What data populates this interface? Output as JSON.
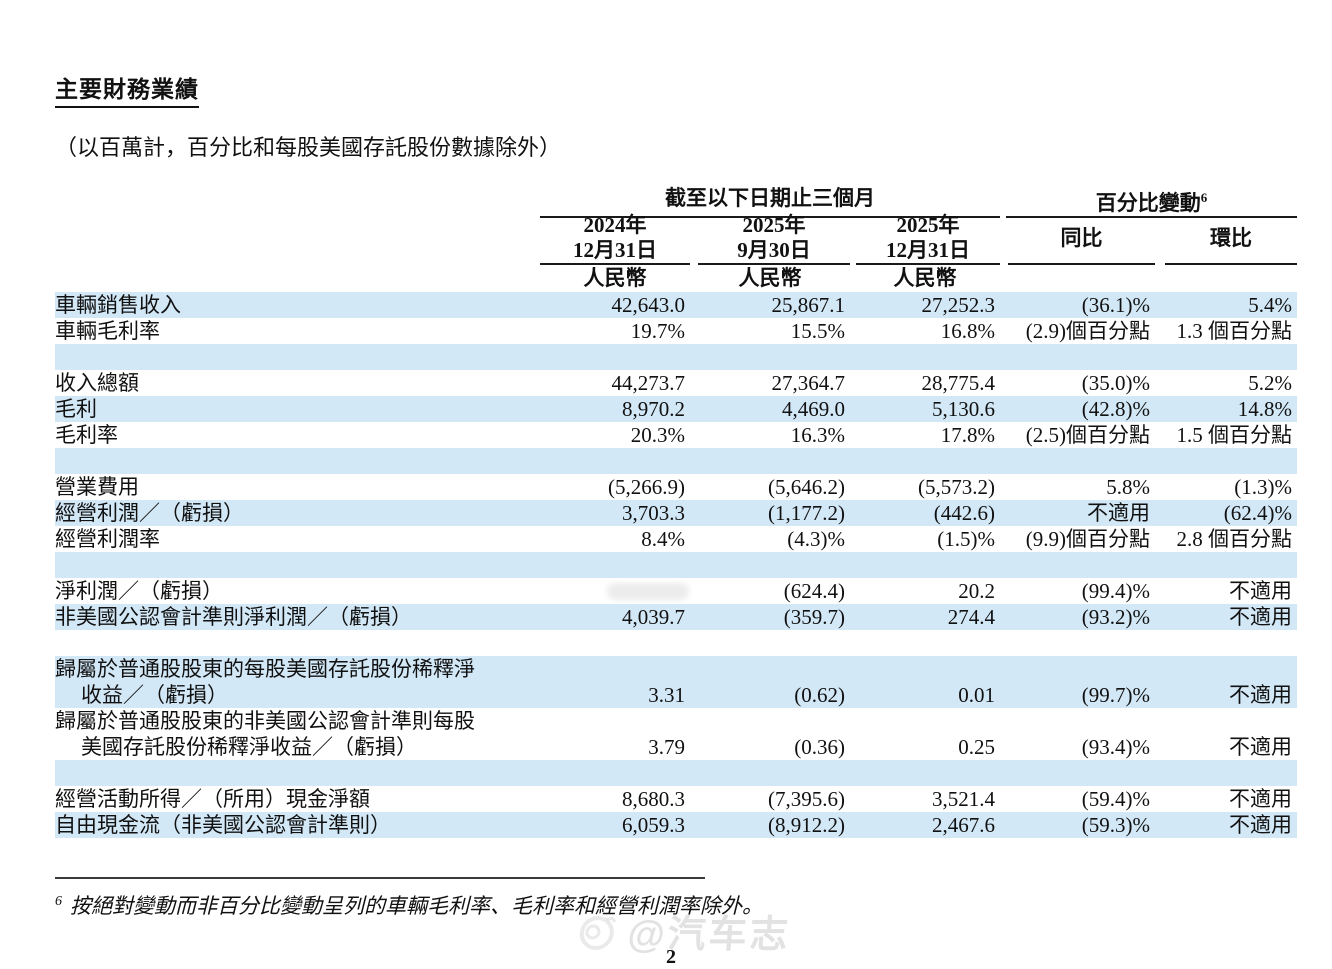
{
  "document": {
    "title": "主要財務業績",
    "unit_note": "（以百萬計，百分比和每股美國存託股份數據除外）",
    "footnote": {
      "marker": "6",
      "text": "按絕對變動而非百分比變動呈列的車輛毛利率、毛利率和經營利潤率除外。"
    },
    "watermark_text": "@汽车志",
    "page_number": "2"
  },
  "colors": {
    "row_stripe_blue": "#d3e8f7",
    "text": "#111111",
    "rule": "#1a1a1a"
  },
  "table": {
    "group_headers": {
      "period_label": "截至以下日期止三個月",
      "change_label": "百分比變動",
      "change_superscript": "6"
    },
    "column_headers": [
      {
        "year": "2024年",
        "date": "12月31日",
        "currency": "人民幣"
      },
      {
        "year": "2025年",
        "date": "9月30日",
        "currency": "人民幣"
      },
      {
        "year": "2025年",
        "date": "12月31日",
        "currency": "人民幣"
      },
      {
        "label": "同比"
      },
      {
        "label": "環比"
      }
    ],
    "rows": [
      {
        "type": "data",
        "stripe": "blue",
        "label": [
          "車輛銷售收入"
        ],
        "values": [
          "42,643.0",
          "25,867.1",
          "27,252.3",
          "(36.1)%",
          "5.4%"
        ]
      },
      {
        "type": "data",
        "stripe": "white",
        "label": [
          "車輛毛利率"
        ],
        "values": [
          "19.7%",
          "15.5%",
          "16.8%",
          "(2.9)個百分點",
          "1.3 個百分點"
        ]
      },
      {
        "type": "gap",
        "stripe": "blue"
      },
      {
        "type": "data",
        "stripe": "white",
        "label": [
          "收入總額"
        ],
        "values": [
          "44,273.7",
          "27,364.7",
          "28,775.4",
          "(35.0)%",
          "5.2%"
        ]
      },
      {
        "type": "data",
        "stripe": "blue",
        "label": [
          "毛利"
        ],
        "values": [
          "8,970.2",
          "4,469.0",
          "5,130.6",
          "(42.8)%",
          "14.8%"
        ]
      },
      {
        "type": "data",
        "stripe": "white",
        "label": [
          "毛利率"
        ],
        "values": [
          "20.3%",
          "16.3%",
          "17.8%",
          "(2.5)個百分點",
          "1.5 個百分點"
        ]
      },
      {
        "type": "gap",
        "stripe": "blue"
      },
      {
        "type": "data",
        "stripe": "white",
        "label": [
          "營業費用"
        ],
        "values": [
          "(5,266.9)",
          "(5,646.2)",
          "(5,573.2)",
          "5.8%",
          "(1.3)%"
        ]
      },
      {
        "type": "data",
        "stripe": "blue",
        "label": [
          "經營利潤／（虧損）"
        ],
        "values": [
          "3,703.3",
          "(1,177.2)",
          "(442.6)",
          "不適用",
          "(62.4)%"
        ]
      },
      {
        "type": "data",
        "stripe": "white",
        "label": [
          "經營利潤率"
        ],
        "values": [
          "8.4%",
          "(4.3)%",
          "(1.5)%",
          "(9.9)個百分點",
          "2.8 個百分點"
        ]
      },
      {
        "type": "gap",
        "stripe": "blue"
      },
      {
        "type": "data",
        "stripe": "white",
        "label": [
          "淨利潤／（虧損）"
        ],
        "values": [
          "",
          "(624.4)",
          "20.2",
          "(99.4)%",
          "不適用"
        ],
        "redacted_first_value": true
      },
      {
        "type": "data",
        "stripe": "blue",
        "label": [
          "非美國公認會計準則淨利潤／（虧損）"
        ],
        "values": [
          "4,039.7",
          "(359.7)",
          "274.4",
          "(93.2)%",
          "不適用"
        ]
      },
      {
        "type": "gap",
        "stripe": "white"
      },
      {
        "type": "data",
        "stripe": "blue",
        "label": [
          "歸屬於普通股股東的每股美國存託股份稀釋淨",
          "收益／（虧損）"
        ],
        "values": [
          "3.31",
          "(0.62)",
          "0.01",
          "(99.7)%",
          "不適用"
        ]
      },
      {
        "type": "data",
        "stripe": "white",
        "label": [
          "歸屬於普通股股東的非美國公認會計準則每股",
          "美國存託股份稀釋淨收益／（虧損）"
        ],
        "values": [
          "3.79",
          "(0.36)",
          "0.25",
          "(93.4)%",
          "不適用"
        ]
      },
      {
        "type": "gap",
        "stripe": "blue"
      },
      {
        "type": "data",
        "stripe": "white",
        "label": [
          "經營活動所得／（所用）現金淨額"
        ],
        "values": [
          "8,680.3",
          "(7,395.6)",
          "3,521.4",
          "(59.4)%",
          "不適用"
        ]
      },
      {
        "type": "data",
        "stripe": "blue",
        "label": [
          "自由現金流（非美國公認會計準則）"
        ],
        "values": [
          "6,059.3",
          "(8,912.2)",
          "2,467.6",
          "(59.3)%",
          "不適用"
        ]
      }
    ]
  }
}
